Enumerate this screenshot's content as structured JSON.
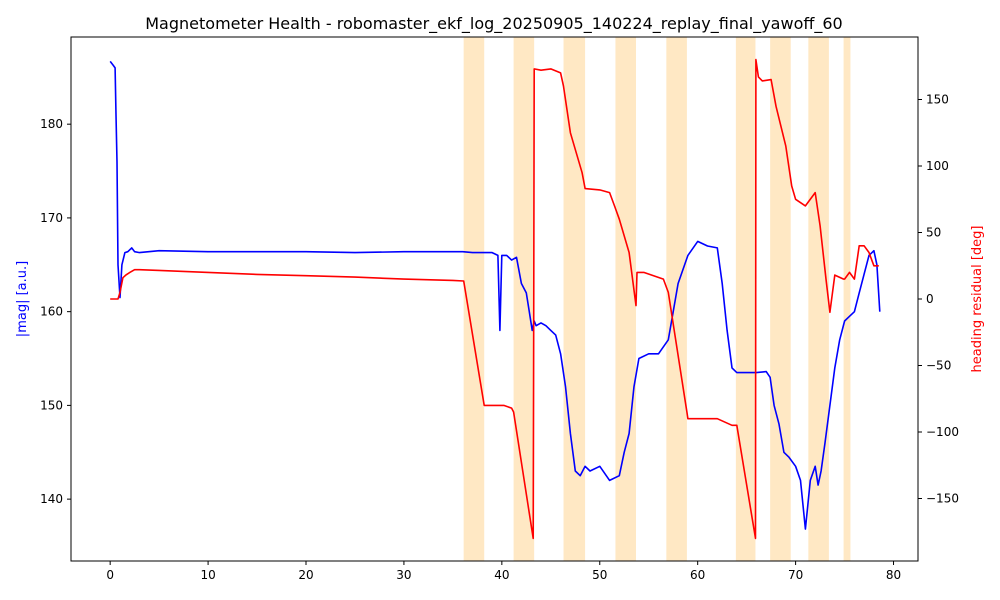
{
  "chart_data": {
    "type": "line",
    "title": "Magnetometer Health - robomaster_ekf_log_20250905_140224_replay_final_yawoff_60",
    "xlabel": "",
    "ylabel_left": "|mag| [a.u.]",
    "ylabel_right": "heading residual [deg]",
    "xlim": [
      -4,
      82.5
    ],
    "ylim_left": [
      133.4,
      189.3
    ],
    "ylim_right": [
      -197,
      197
    ],
    "x_ticks": [
      0,
      10,
      20,
      30,
      40,
      50,
      60,
      70,
      80
    ],
    "y_left_ticks": [
      140,
      150,
      160,
      170,
      180
    ],
    "y_right_ticks": [
      -150,
      -100,
      -50,
      0,
      50,
      100,
      150
    ],
    "grid": false,
    "colors": {
      "mag": "#0000ff",
      "residual": "#ff0000",
      "span": "#ffe0b0"
    },
    "spans": [
      [
        36.1,
        36.8
      ],
      [
        36.8,
        38.2
      ],
      [
        41.2,
        43.3
      ],
      [
        46.3,
        48.5
      ],
      [
        51.6,
        53.7
      ],
      [
        56.8,
        58.9
      ],
      [
        63.9,
        65.9
      ],
      [
        67.4,
        69.5
      ],
      [
        71.3,
        73.4
      ],
      [
        74.9,
        75.6
      ]
    ],
    "series": [
      {
        "axis": "left",
        "color": "#0000ff",
        "x": [
          0,
          0.3,
          0.5,
          0.6,
          0.7,
          0.8,
          1.0,
          1.2,
          1.5,
          1.8,
          2.2,
          2.5,
          3,
          5,
          10,
          15,
          20,
          25,
          30,
          35,
          36,
          37,
          38,
          39,
          39.6,
          39.8,
          40,
          40.5,
          41,
          41.5,
          42,
          42.5,
          42.8,
          43.1,
          43.3,
          43.5,
          44,
          44.5,
          45,
          45.5,
          46,
          46.5,
          47,
          47.5,
          48,
          48.5,
          49,
          50,
          51,
          52,
          52.5,
          53,
          53.5,
          54,
          55,
          56,
          57,
          57.5,
          58,
          59,
          60,
          61,
          62,
          62.5,
          63,
          63.5,
          64,
          65,
          66,
          67,
          67.4,
          67.8,
          68.3,
          68.8,
          69.3,
          70,
          70.5,
          71,
          71.5,
          72,
          72.3,
          72.6,
          73,
          73.5,
          74,
          74.5,
          75,
          75.5,
          76,
          76.5,
          77,
          77.5,
          78,
          78.3,
          78.6
        ],
        "y": [
          186.7,
          186.3,
          186,
          181,
          176,
          165,
          161.5,
          165,
          166.3,
          166.4,
          166.8,
          166.4,
          166.3,
          166.5,
          166.4,
          166.4,
          166.4,
          166.3,
          166.4,
          166.4,
          166.4,
          166.3,
          166.3,
          166.3,
          166,
          158,
          166,
          166,
          165.5,
          165.8,
          163,
          162,
          160,
          158,
          159,
          158.5,
          158.8,
          158.5,
          158,
          157.5,
          155.5,
          152,
          147,
          143,
          142.5,
          143.5,
          143,
          143.5,
          142,
          142.5,
          145,
          147,
          152,
          155,
          155.5,
          155.5,
          157,
          160,
          163,
          166,
          167.5,
          167,
          166.8,
          163,
          158,
          154,
          153.5,
          153.5,
          153.5,
          153.6,
          153,
          150,
          148,
          145,
          144.5,
          143.5,
          142,
          136.8,
          142,
          143.5,
          141.5,
          143,
          146,
          150,
          154,
          157,
          159,
          159.5,
          160,
          162,
          164,
          166,
          166.5,
          165,
          160
        ]
      },
      {
        "axis": "right",
        "color": "#ff0000",
        "x": [
          0,
          0.8,
          1.0,
          1.3,
          1.6,
          2.0,
          2.5,
          3,
          5,
          10,
          15,
          20,
          25,
          30,
          35,
          36.1,
          38.2,
          40.2,
          41,
          41.2,
          43.2,
          43.25,
          43.3,
          44,
          45,
          46,
          46.3,
          47,
          48.2,
          48.5,
          50,
          51,
          51.5,
          52,
          53,
          53.7,
          53.8,
          54.5,
          56.5,
          57,
          58.9,
          59,
          62,
          63.5,
          64,
          65.9,
          65.95,
          66.2,
          66.6,
          67.5,
          68,
          69,
          69.6,
          70,
          71,
          72,
          72.5,
          73.1,
          73.5,
          74,
          74.9,
          75,
          75.5,
          76,
          76.5,
          77,
          77.5,
          78,
          78.5
        ],
        "y": [
          0,
          0,
          5,
          16,
          18,
          20,
          22,
          22,
          21.5,
          20,
          18.5,
          17.5,
          16.5,
          15,
          14,
          13.5,
          -80,
          -80,
          -82,
          -85,
          -180,
          -20,
          173,
          172,
          173,
          170,
          160,
          125,
          95,
          83,
          82,
          80,
          70,
          60,
          35,
          -5,
          20,
          20,
          15,
          5,
          -85,
          -90,
          -90,
          -95,
          -95,
          -180,
          180,
          167,
          164,
          165,
          145,
          115,
          85,
          75,
          70,
          80,
          55,
          15,
          -10,
          18,
          15,
          15,
          20,
          15,
          40,
          40,
          35,
          25,
          25
        ]
      }
    ]
  }
}
